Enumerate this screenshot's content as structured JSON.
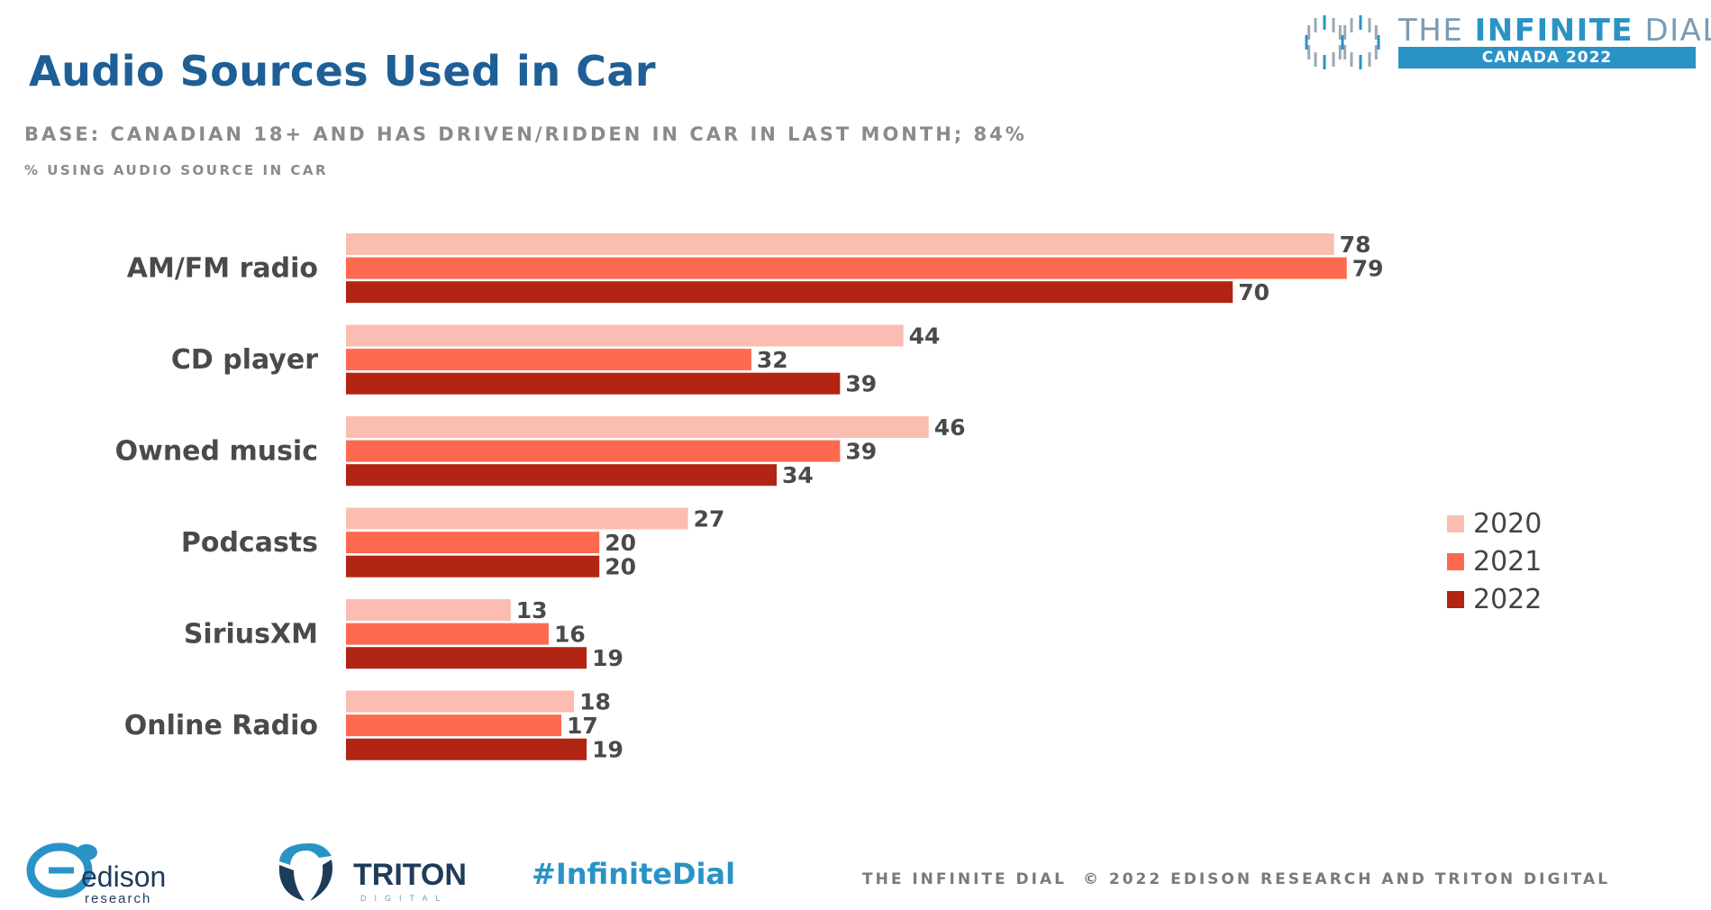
{
  "header": {
    "title": "Audio Sources Used in Car",
    "base_note": "BASE: CANADIAN 18+ AND HAS DRIVEN/RIDDEN IN CAR IN LAST MONTH; 84%",
    "subtitle": "% USING AUDIO SOURCE IN CAR"
  },
  "brand": {
    "word_plain": "THE",
    "word_bold": "INFINITE",
    "word_end": "DIAL",
    "band": "CANADA  2022"
  },
  "footer": {
    "edison_name": "edison",
    "edison_sub": "research",
    "triton_name": "TRITON",
    "triton_sub": "DIGITAL",
    "hashtag": "#InfiniteDial",
    "left_text": "THE INFINITE DIAL",
    "right_text": "© 2022 EDISON RESEARCH AND TRITON DIGITAL"
  },
  "colors": {
    "s2020": "#fbbdb2",
    "s2021": "#fd6a50",
    "s2022": "#b22414",
    "title": "#1d5f96",
    "accent": "#2a93c6"
  },
  "chart_data": {
    "type": "bar",
    "orientation": "horizontal",
    "categories": [
      "AM/FM radio",
      "CD player",
      "Owned music",
      "Podcasts",
      "SiriusXM",
      "Online Radio"
    ],
    "series": [
      {
        "name": "2020",
        "values": [
          78,
          44,
          46,
          27,
          13,
          18
        ]
      },
      {
        "name": "2021",
        "values": [
          79,
          32,
          39,
          20,
          16,
          17
        ]
      },
      {
        "name": "2022",
        "values": [
          70,
          39,
          34,
          20,
          19,
          19
        ]
      }
    ],
    "legend_position": "right",
    "grid": false
  }
}
